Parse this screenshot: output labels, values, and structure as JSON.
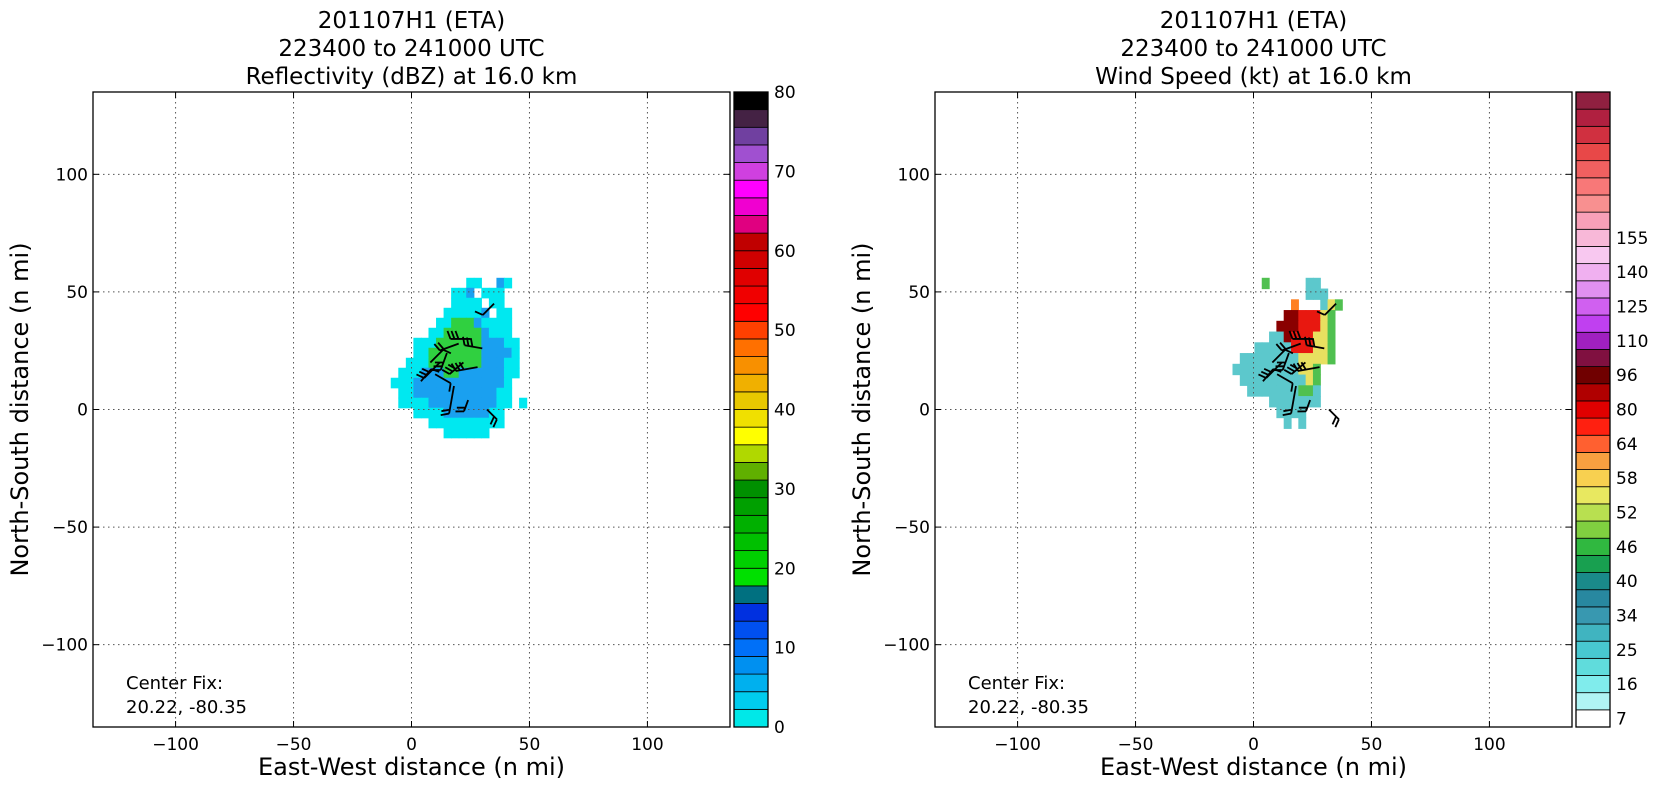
{
  "chart_data": [
    {
      "type": "heatmap",
      "title": [
        "201107H1 (ETA)",
        "223400 to 241000 UTC",
        "Reflectivity (dBZ) at 16.0 km"
      ],
      "xlabel": "East-West distance (n mi)",
      "ylabel": "North-South distance (n mi)",
      "xlim": [
        -135,
        135
      ],
      "ylim": [
        -135,
        135
      ],
      "xticks": [
        -100,
        -50,
        0,
        50,
        100
      ],
      "yticks": [
        -100,
        -50,
        0,
        50,
        100
      ],
      "xtick_labels": [
        "−100",
        "−50",
        "0",
        "50",
        "100"
      ],
      "ytick_labels": [
        "−100",
        "−50",
        "0",
        "50",
        "100"
      ],
      "grid": true,
      "annotation": [
        "Center Fix:",
        "20.22, -80.35"
      ],
      "colorbar": {
        "label_values": [
          0,
          10,
          20,
          30,
          40,
          50,
          60,
          70,
          80
        ],
        "labels": [
          "0",
          "10",
          "20",
          "30",
          "40",
          "50",
          "60",
          "70",
          "80"
        ],
        "vmin": 0,
        "vmax": 80,
        "colors": [
          "#00e8e8",
          "#00ccee",
          "#00b0ee",
          "#0090f0",
          "#0070f8",
          "#0050f0",
          "#0030e0",
          "#007080",
          "#00e000",
          "#00d000",
          "#00c000",
          "#00b000",
          "#00a000",
          "#009000",
          "#60b000",
          "#b0d800",
          "#ffff00",
          "#f0e000",
          "#e8c800",
          "#f0b000",
          "#f89000",
          "#ff7000",
          "#ff4000",
          "#ff0000",
          "#f00000",
          "#e00000",
          "#d00000",
          "#c00000",
          "#e00080",
          "#f000d0",
          "#ff00ff",
          "#d040e0",
          "#a050d0",
          "#7040a0",
          "#442244",
          "#000000"
        ]
      },
      "field": {
        "rows_from_top": [
          "...........aa..ba...",
          ".........aab.aaa....",
          ".........aaaa.aa....",
          "........aaaaab.aa...",
          ".......aagggbaaaa...",
          "......aagggggbaaa...",
          "....aaaggggggbbbaa..",
          "....aagggggggbbbba..",
          "...aaagggggggbbbaa..",
          "..aaabbbggbbbbbbaa..",
          ".aaabbbbbbbbbbbba...",
          "..aabbbbbbbbbbbaa...",
          "..aaaabbbbbbbbbaa.a.",
          "....aaaabbbbbbaa....",
          "......aaaaaaaaaa....",
          "........aaaaaa......"
        ],
        "x_range": [
          -12,
          52
        ],
        "y_range": [
          -12,
          56
        ],
        "legend": {
          "a": "#00e8f0",
          "b": "#1aa0f0",
          "g": "#30d040"
        }
      },
      "barbs": [
        {
          "x": 12,
          "y": 20,
          "dir": 225,
          "len": 22,
          "flags": 3
        },
        {
          "x": 15,
          "y": 24,
          "dir": 200,
          "len": 18,
          "flags": 3
        },
        {
          "x": 20,
          "y": 28,
          "dir": 250,
          "len": 20,
          "flags": 2
        },
        {
          "x": 25,
          "y": 30,
          "dir": 270,
          "len": 20,
          "flags": 3
        },
        {
          "x": 30,
          "y": 26,
          "dir": 280,
          "len": 18,
          "flags": 3
        },
        {
          "x": 28,
          "y": 18,
          "dir": 260,
          "len": 22,
          "flags": 3
        },
        {
          "x": 22,
          "y": 20,
          "dir": 230,
          "len": 18,
          "flags": 3
        },
        {
          "x": 18,
          "y": 10,
          "dir": 190,
          "len": 28,
          "flags": 2
        },
        {
          "x": 10,
          "y": 15,
          "dir": 120,
          "len": 18,
          "flags": 1
        },
        {
          "x": 8,
          "y": 20,
          "dir": 45,
          "len": 18,
          "flags": 1
        },
        {
          "x": 35,
          "y": 45,
          "dir": 225,
          "len": 16,
          "flags": 1
        },
        {
          "x": 32,
          "y": 0,
          "dir": 135,
          "len": 14,
          "flags": 2
        },
        {
          "x": 24,
          "y": 4,
          "dir": 200,
          "len": 12,
          "flags": 2
        },
        {
          "x": 4,
          "y": 12,
          "dir": 40,
          "len": 16,
          "flags": 1
        }
      ]
    },
    {
      "type": "heatmap",
      "title": [
        "201107H1 (ETA)",
        "223400 to 241000 UTC",
        "Wind Speed (kt) at 16.0 km"
      ],
      "xlabel": "East-West distance (n mi)",
      "ylabel": "North-South distance (n mi)",
      "xlim": [
        -135,
        135
      ],
      "ylim": [
        -135,
        135
      ],
      "xticks": [
        -100,
        -50,
        0,
        50,
        100
      ],
      "yticks": [
        -100,
        -50,
        0,
        50,
        100
      ],
      "xtick_labels": [
        "−100",
        "−50",
        "0",
        "50",
        "100"
      ],
      "ytick_labels": [
        "−100",
        "−50",
        "0",
        "50",
        "100"
      ],
      "grid": true,
      "annotation": [
        "Center Fix:",
        "20.22, -80.35"
      ],
      "colorbar": {
        "label_values": [
          7,
          16,
          25,
          34,
          40,
          46,
          52,
          58,
          64,
          80,
          96,
          110,
          125,
          140,
          155
        ],
        "labels": [
          "7",
          "16",
          "25",
          "34",
          "40",
          "46",
          "52",
          "58",
          "64",
          "80",
          "96",
          "110",
          "125",
          "140",
          "155"
        ],
        "label_bins": [
          0,
          2,
          4,
          6,
          8,
          10,
          12,
          14,
          16,
          18,
          20,
          22,
          24,
          26,
          28
        ],
        "colors": [
          "#ffffff",
          "#b0f4f4",
          "#80ecec",
          "#60dcdc",
          "#48c8d0",
          "#40b4c0",
          "#3898b0",
          "#2888a0",
          "#1a8a8a",
          "#18a050",
          "#30b840",
          "#80d040",
          "#b8e050",
          "#e8e860",
          "#f8d050",
          "#f8a040",
          "#ff6030",
          "#ff2010",
          "#e00000",
          "#b00000",
          "#700000",
          "#801040",
          "#a020c0",
          "#c040f0",
          "#d060f0",
          "#e090f0",
          "#f0b0f0",
          "#f8c8f0",
          "#f8b8d8",
          "#f8a0b8",
          "#f89090",
          "#f87878",
          "#f06060",
          "#e84848",
          "#d03040",
          "#b02040",
          "#902040"
        ]
      },
      "field": {
        "rows_from_top": [
          ".....g.....tt.......",
          "...........ttt......",
          ".........o...tyg....",
          "........ddrrryg.....",
          ".......dddrrryg.....",
          "......ttdrrryyg.....",
          "....tttttrrryyg.....",
          "..ttttttttyyyyg.....",
          ".tttttttttyyg.......",
          "..tttttttttyg.......",
          "...tttttttggt.......",
          "......ttttttt.......",
          ".......tttt.........",
          "........t.t........."
        ],
        "x_range": [
          -12,
          50
        ],
        "y_range": [
          -8,
          56
        ],
        "legend": {
          "t": "#5cc8cc",
          "d": "#8a0000",
          "r": "#e81810",
          "o": "#ff8020",
          "y": "#e8e060",
          "g": "#50c050"
        }
      },
      "barbs": [
        {
          "x": 12,
          "y": 20,
          "dir": 225,
          "len": 22,
          "flags": 3
        },
        {
          "x": 15,
          "y": 24,
          "dir": 200,
          "len": 18,
          "flags": 3
        },
        {
          "x": 20,
          "y": 28,
          "dir": 250,
          "len": 20,
          "flags": 2
        },
        {
          "x": 25,
          "y": 30,
          "dir": 270,
          "len": 20,
          "flags": 3
        },
        {
          "x": 30,
          "y": 26,
          "dir": 280,
          "len": 18,
          "flags": 3
        },
        {
          "x": 28,
          "y": 18,
          "dir": 260,
          "len": 22,
          "flags": 3
        },
        {
          "x": 22,
          "y": 20,
          "dir": 230,
          "len": 18,
          "flags": 3
        },
        {
          "x": 18,
          "y": 10,
          "dir": 190,
          "len": 28,
          "flags": 2
        },
        {
          "x": 10,
          "y": 15,
          "dir": 120,
          "len": 18,
          "flags": 1
        },
        {
          "x": 8,
          "y": 20,
          "dir": 45,
          "len": 18,
          "flags": 1
        },
        {
          "x": 35,
          "y": 45,
          "dir": 225,
          "len": 16,
          "flags": 1
        },
        {
          "x": 32,
          "y": 0,
          "dir": 135,
          "len": 14,
          "flags": 2
        },
        {
          "x": 24,
          "y": 4,
          "dir": 200,
          "len": 12,
          "flags": 2
        },
        {
          "x": 4,
          "y": 12,
          "dir": 40,
          "len": 16,
          "flags": 1
        }
      ]
    }
  ]
}
